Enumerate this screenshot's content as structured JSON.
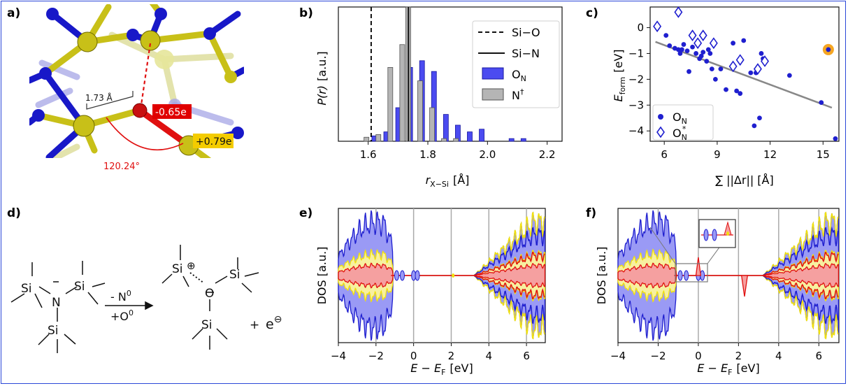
{
  "panel_labels": {
    "a": "a)",
    "b": "b)",
    "c": "c)",
    "d": "d)",
    "e": "e)",
    "f": "f)"
  },
  "colors": {
    "border": "#2b47d8",
    "blue": "#1f1fcf",
    "hist_blue": "#4b4bf0",
    "gray": "#b5b5b5",
    "red": "#e01010",
    "yellow": "#f2e20a",
    "orange": "#f5a623",
    "si_yellow": "#c8c018"
  },
  "panel_a": {
    "bond_length": "1.73 Å",
    "charge_o": "-0.65e",
    "charge_si": "+0.79e",
    "angle": "120.24°"
  },
  "panel_b": {
    "ylabel": "P(r) [a.u.]",
    "xlabel": "rX−Si [Å]",
    "xlabel_main": "r",
    "xlabel_sub": "X−Si",
    "xlabel_unit": "[Å]",
    "ylabel_main": "P(r)",
    "ylabel_unit": "[a.u.]",
    "legend": {
      "si_o": "Si−O",
      "si_n": "Si−N",
      "on": "O",
      "on_sub": "N",
      "nd": "N",
      "nd_sup": "†"
    },
    "xticks": [
      "1.6",
      "1.8",
      "2.0",
      "2.2"
    ]
  },
  "panel_c": {
    "ylabel_main": "E",
    "ylabel_sub": "form",
    "ylabel_unit": "[eV]",
    "xlabel": "∑ ||Δr|| [Å]",
    "legend": {
      "on": "O",
      "on_sub": "N",
      "ons": "O",
      "ons_sub": "N",
      "ons_sup": "*"
    },
    "xticks": [
      "6",
      "9",
      "12",
      "15"
    ],
    "yticks": [
      "0",
      "−1",
      "−2",
      "−3",
      "−4"
    ]
  },
  "panel_d": {
    "si": "Si",
    "n": "N",
    "o": "O",
    "arrow_top": "- N",
    "arrow_top_sup": "0",
    "arrow_bottom": "+O",
    "arrow_bottom_sup": "0",
    "plus": "+",
    "electron": "e",
    "electron_sup": "⊖",
    "plus_circle": "⊕"
  },
  "panel_e": {
    "ylabel": "DOS [a.u.]",
    "xlabel_main": "E − E",
    "xlabel_sub": "F",
    "xlabel_unit": "[eV]",
    "xticks": [
      "−4",
      "−2",
      "0",
      "2",
      "4",
      "6"
    ]
  },
  "panel_f": {
    "ylabel": "DOS [a.u.]",
    "xlabel_main": "E − E",
    "xlabel_sub": "F",
    "xlabel_unit": "[eV]",
    "xticks": [
      "−4",
      "−2",
      "0",
      "2",
      "4",
      "6"
    ]
  },
  "chart_data": [
    {
      "panel": "b",
      "type": "bar",
      "xlabel": "rX−Si [Å]",
      "ylabel": "P(r) [a.u.]",
      "xlim": [
        1.5,
        2.25
      ],
      "ylim": [
        0,
        1
      ],
      "vlines": [
        {
          "name": "Si−O",
          "x": 1.61,
          "style": "dashed"
        },
        {
          "name": "Si−N",
          "x": 1.735,
          "style": "solid"
        }
      ],
      "series": [
        {
          "name": "ON",
          "x": [
            1.61,
            1.65,
            1.69,
            1.73,
            1.77,
            1.81,
            1.85,
            1.89,
            1.93,
            1.97,
            2.07,
            2.11
          ],
          "values": [
            0.04,
            0.07,
            0.25,
            0.55,
            0.6,
            0.52,
            0.2,
            0.12,
            0.07,
            0.09,
            0.02,
            0.02
          ]
        },
        {
          "name": "N†",
          "x": [
            1.6,
            1.64,
            1.68,
            1.72,
            1.74,
            1.78,
            1.82,
            1.86,
            1.9
          ],
          "values": [
            0.03,
            0.05,
            0.55,
            0.72,
            1.0,
            0.45,
            0.25,
            0.02,
            0.02
          ]
        }
      ]
    },
    {
      "panel": "c",
      "type": "scatter",
      "xlabel": "∑ ||Δr|| [Å]",
      "ylabel": "Eform [eV]",
      "xlim": [
        5.2,
        15.9
      ],
      "ylim": [
        -4.4,
        0.8
      ],
      "fit_line": {
        "x": [
          5.5,
          15.5
        ],
        "y": [
          -0.55,
          -3.1
        ]
      },
      "highlight": {
        "x": 15.3,
        "y": -0.85
      },
      "series": [
        {
          "name": "ON",
          "marker": "dot",
          "x": [
            6.1,
            6.3,
            6.6,
            6.9,
            7.1,
            7.3,
            7.6,
            7.8,
            8.0,
            8.2,
            8.4,
            8.5,
            8.7,
            8.9,
            9.2,
            9.5,
            10.1,
            10.3,
            10.5,
            11.1,
            11.4,
            11.6,
            11.2,
            13.1,
            14.9,
            15.3,
            15.7,
            6.8,
            7.4,
            8.1,
            9.9,
            7.0,
            8.6,
            10.9,
            11.5
          ],
          "y": [
            -0.3,
            -0.7,
            -0.8,
            -1.0,
            -0.65,
            -0.9,
            -0.75,
            -1.0,
            -1.2,
            -0.95,
            -1.3,
            -0.85,
            -1.6,
            -2.0,
            -1.6,
            -2.4,
            -2.45,
            -2.55,
            -0.5,
            -3.8,
            -3.5,
            -1.2,
            -1.75,
            -1.85,
            -2.9,
            -0.85,
            -4.3,
            -0.85,
            -1.7,
            -1.1,
            -0.6,
            -0.85,
            -1.0,
            -1.75,
            -1.0
          ]
        },
        {
          "name": "O*N",
          "marker": "diamond",
          "x": [
            5.6,
            6.8,
            7.6,
            7.9,
            8.2,
            8.8,
            9.9,
            10.3,
            11.3,
            11.7
          ],
          "y": [
            0.05,
            0.6,
            -0.3,
            -0.6,
            -0.3,
            -0.6,
            -1.5,
            -1.25,
            -1.6,
            -1.3
          ]
        }
      ]
    },
    {
      "panel": "e",
      "type": "area",
      "xlabel": "E − EF [eV]",
      "ylabel": "DOS [a.u.]",
      "xlim": [
        -4,
        7
      ],
      "gridlines_x": [
        -2,
        0,
        2,
        4,
        6
      ]
    },
    {
      "panel": "f",
      "type": "area",
      "xlabel": "E − EF [eV]",
      "ylabel": "DOS [a.u.]",
      "xlim": [
        -4,
        7
      ],
      "gridlines_x": [
        -2,
        0,
        2,
        4,
        6
      ]
    }
  ]
}
